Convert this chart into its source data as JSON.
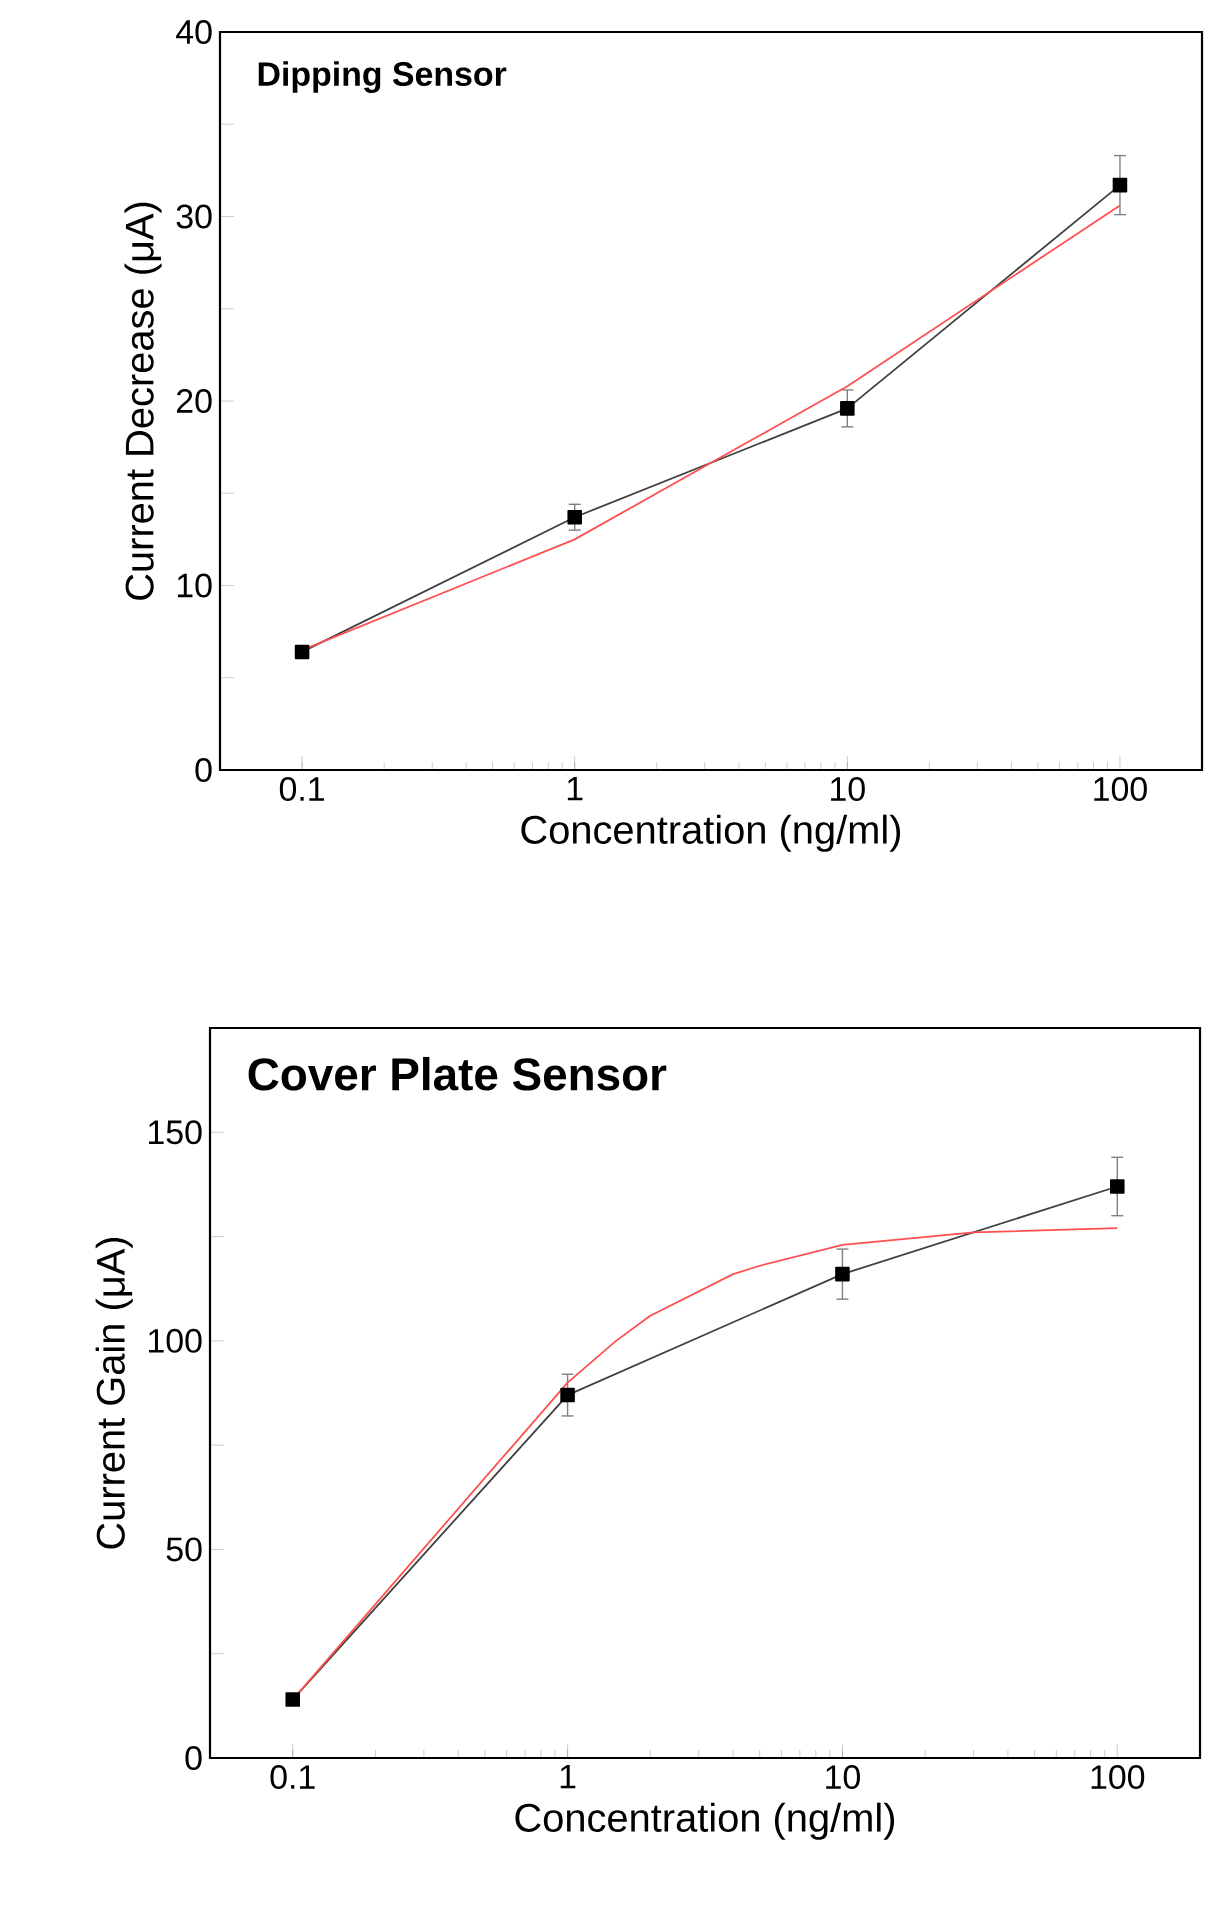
{
  "chart_data": [
    {
      "type": "line",
      "title": "Dipping Sensor",
      "xlabel": "Concentration (ng/ml)",
      "ylabel": "Current Decrease (μA)",
      "log": "x",
      "xlim": [
        0.05,
        200
      ],
      "xticks": [
        0.1,
        1,
        10,
        100
      ],
      "ylim": [
        0,
        40
      ],
      "yticks": [
        0,
        {
          "value": 5,
          "label": null
        },
        10,
        {
          "value": 15,
          "label": null
        },
        20,
        {
          "value": 25,
          "label": null
        },
        30,
        {
          "value": 35,
          "label": null
        },
        40
      ],
      "grid": false,
      "series": [
        {
          "x": [
            0.1,
            1,
            10,
            100
          ],
          "values": [
            6.4,
            13.7,
            19.6,
            31.7
          ],
          "errors": [
            null,
            0.7,
            1.0,
            1.6
          ],
          "color": "#404040",
          "marker": "square"
        },
        {
          "x": [
            0.1,
            1,
            10,
            100
          ],
          "values": [
            6.5,
            12.5,
            20.8,
            30.6
          ],
          "color": "#ff5050",
          "marker": "none"
        }
      ]
    },
    {
      "type": "line",
      "title": "Cover Plate Sensor",
      "xlabel": "Concentration (ng/ml)",
      "ylabel": "Current Gain (μA)",
      "log": "x",
      "xlim": [
        0.05,
        200
      ],
      "xticks": [
        0.1,
        1,
        10,
        100
      ],
      "ylim": [
        0,
        175
      ],
      "yticks": [
        0,
        {
          "value": 25,
          "label": null
        },
        50,
        {
          "value": 75,
          "label": null
        },
        100,
        {
          "value": 125,
          "label": null
        },
        150
      ],
      "grid": false,
      "series": [
        {
          "x": [
            0.1,
            1,
            10,
            100
          ],
          "values": [
            14,
            87,
            116,
            137
          ],
          "errors": [
            null,
            5,
            6,
            7
          ],
          "color": "#404040",
          "marker": "square"
        },
        {
          "x": [
            0.1,
            1,
            1.5,
            2,
            4,
            5,
            10,
            30,
            100
          ],
          "values": [
            14,
            90,
            100,
            106,
            116,
            118,
            123,
            126,
            127
          ],
          "color": "#ff5050",
          "marker": "none"
        }
      ]
    }
  ]
}
